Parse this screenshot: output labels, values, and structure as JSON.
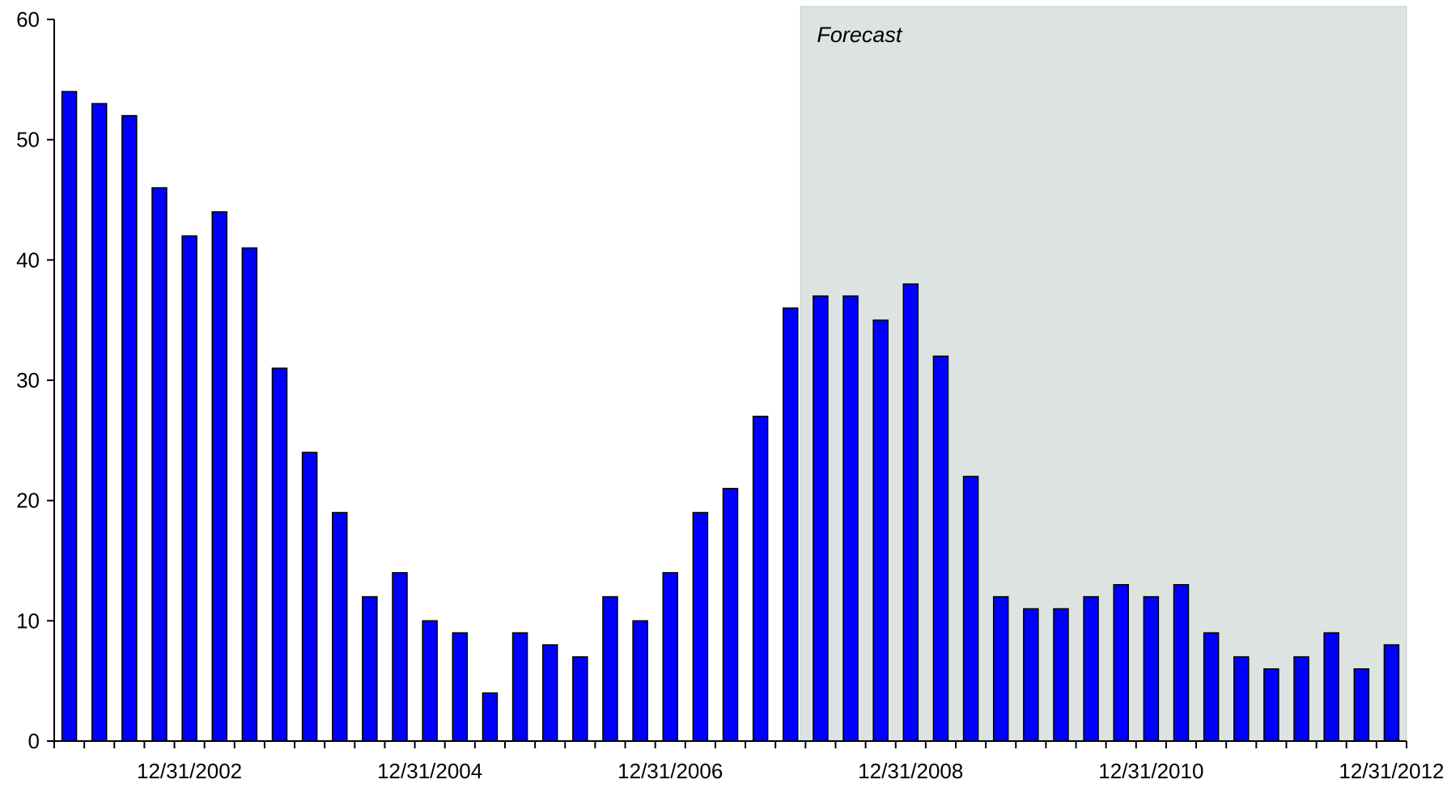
{
  "chart_data": {
    "type": "bar",
    "title": "",
    "xlabel": "",
    "ylabel": "",
    "ylim": [
      0,
      60
    ],
    "yticks": [
      0,
      10,
      20,
      30,
      40,
      50,
      60
    ],
    "xtick_labels": [
      {
        "index": 4,
        "label": "12/31/2002"
      },
      {
        "index": 12,
        "label": "12/31/2004"
      },
      {
        "index": 20,
        "label": "12/31/2006"
      },
      {
        "index": 28,
        "label": "12/31/2008"
      },
      {
        "index": 36,
        "label": "12/31/2010"
      },
      {
        "index": 44,
        "label": "12/31/2012"
      }
    ],
    "values": [
      54,
      53,
      52,
      46,
      42,
      44,
      41,
      31,
      24,
      19,
      12,
      14,
      10,
      9,
      4,
      9,
      8,
      7,
      12,
      10,
      14,
      19,
      21,
      27,
      36,
      37,
      37,
      35,
      38,
      32,
      22,
      12,
      11,
      11,
      12,
      13,
      12,
      13,
      9,
      7,
      6,
      7,
      9,
      6,
      8
    ],
    "forecast": {
      "label": "Forecast",
      "start_index": 25
    },
    "grid": false,
    "legend": "none",
    "colors": {
      "bar_fill": "#0000ff",
      "bar_stroke": "#000000",
      "forecast_fill": "#dde3e1",
      "axis": "#000000"
    }
  }
}
